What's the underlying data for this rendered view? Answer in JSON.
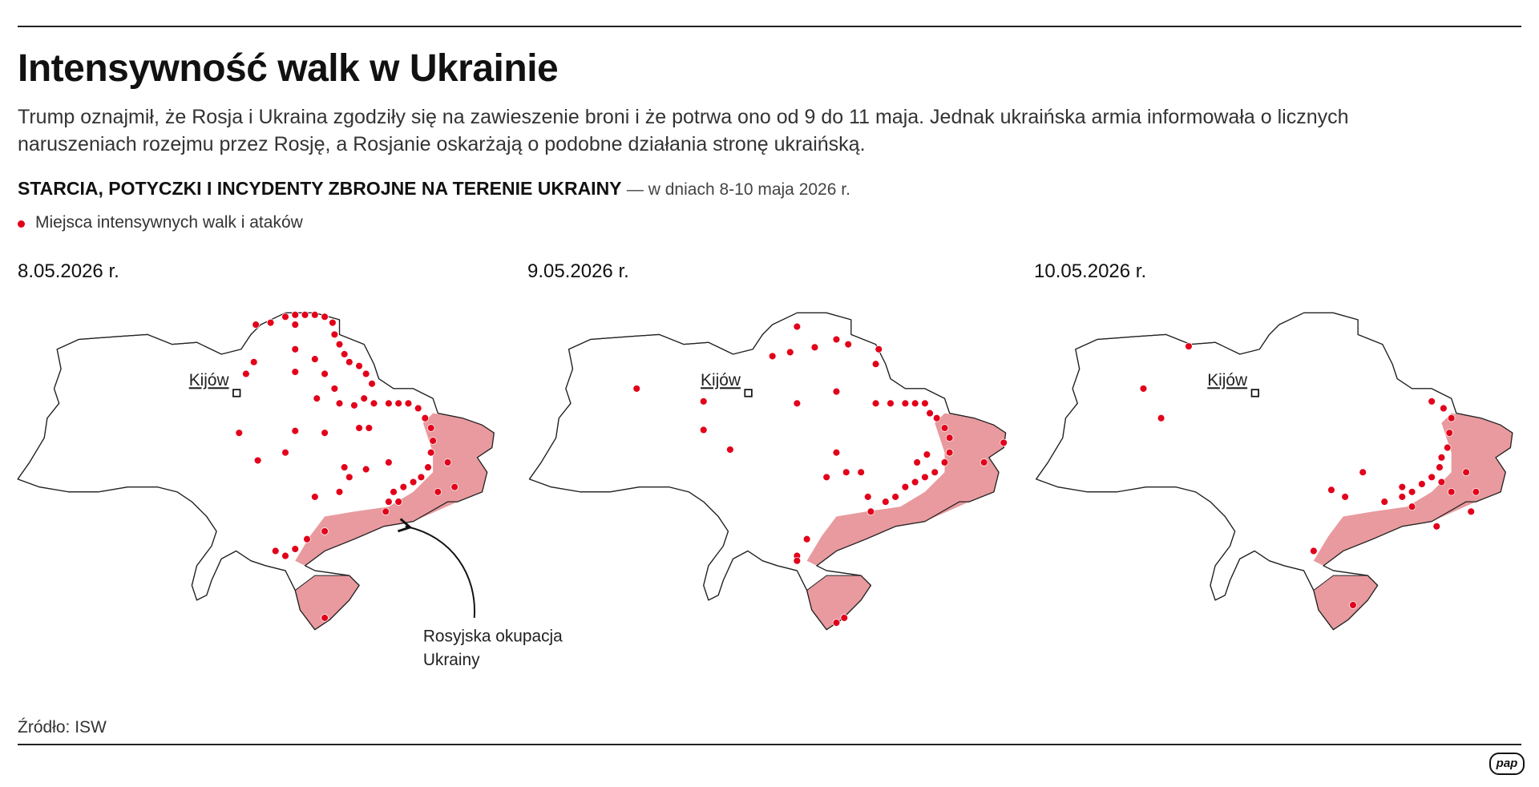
{
  "header": {
    "title": "Intensywność walk w Ukrainie",
    "subtitle_lines": [
      "Trump oznajmił, że Rosja i Ukraina zgodziły się na zawieszenie broni i że potrwa ono od 9 do 11 maja. Jednak ukraińska armia informowała o licznych",
      "naruszeniach rozejmu przez Rosję, a Rosjanie oskarżają o podobne działania stronę ukraińską."
    ]
  },
  "section": {
    "heading": "STARCIA, POTYCZKI I INCYDENTY ZBROJNE NA TERENIE UKRAINY",
    "note": "— w dniach 8-10 maja 2026 r."
  },
  "legend": "Miejsca intensywnych walk i ataków",
  "maps": [
    {
      "date": "8.05.2026 r.",
      "capital": "Kijów"
    },
    {
      "date": "9.05.2026 r.",
      "capital": "Kijów"
    },
    {
      "date": "10.05.2026 r.",
      "capital": "Kijów"
    }
  ],
  "annotation": [
    "Rosyjska okupacja",
    "Ukrainy"
  ],
  "source": "Źródło: ISW",
  "logo": "pap"
}
